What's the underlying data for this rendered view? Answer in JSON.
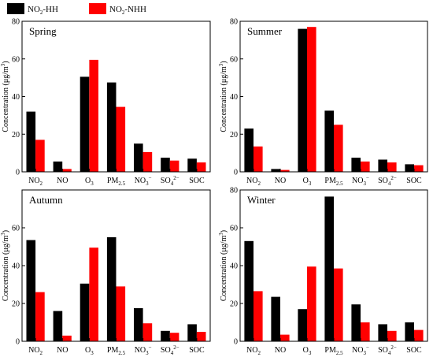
{
  "legend": {
    "items": [
      {
        "base": "NO",
        "sub": "2",
        "suffix": "-HH",
        "color": "#000000"
      },
      {
        "base": "NO",
        "sub": "2",
        "suffix": "-NHH",
        "color": "#ff0000"
      }
    ]
  },
  "categories": [
    {
      "base": "NO",
      "sub": "2",
      "sup": ""
    },
    {
      "base": "NO",
      "sub": "",
      "sup": ""
    },
    {
      "base": "O",
      "sub": "3",
      "sup": ""
    },
    {
      "base": "PM",
      "sub": "2.5",
      "sup": ""
    },
    {
      "base": "NO",
      "sub": "3",
      "sup": "−"
    },
    {
      "base": "SO",
      "sub": "4",
      "sup": "2−"
    },
    {
      "base": "SOC",
      "sub": "",
      "sup": ""
    }
  ],
  "ylabel": {
    "text": "Concentration (μg/m",
    "sup": "3",
    "close": ")"
  },
  "chart_data": [
    {
      "type": "bar",
      "title": "Spring",
      "ylim": [
        0,
        80
      ],
      "yticks": [
        0,
        20,
        40,
        60,
        80
      ],
      "series": [
        {
          "name": "NO2-HH",
          "values": [
            32,
            5.5,
            50.5,
            47.5,
            15,
            7.5,
            7
          ]
        },
        {
          "name": "NO2-NHH",
          "values": [
            17,
            1.5,
            59.5,
            34.5,
            10.5,
            6,
            5
          ]
        }
      ]
    },
    {
      "type": "bar",
      "title": "Summer",
      "ylim": [
        0,
        80
      ],
      "yticks": [
        0,
        20,
        40,
        60,
        80
      ],
      "series": [
        {
          "name": "NO2-HH",
          "values": [
            23,
            1.5,
            76,
            32.5,
            7.5,
            6.5,
            4
          ]
        },
        {
          "name": "NO2-NHH",
          "values": [
            13.5,
            1,
            77,
            25,
            5.5,
            5,
            3.5
          ]
        }
      ]
    },
    {
      "type": "bar",
      "title": "Autumn",
      "ylim": [
        0,
        80
      ],
      "yticks": [
        0,
        20,
        40,
        60
      ],
      "series": [
        {
          "name": "NO2-HH",
          "values": [
            53.5,
            16,
            30.5,
            55,
            17.5,
            5.5,
            9
          ]
        },
        {
          "name": "NO2-NHH",
          "values": [
            26,
            3,
            49.5,
            29,
            9.5,
            4.5,
            5
          ]
        }
      ]
    },
    {
      "type": "bar",
      "title": "Winter",
      "ylim": [
        0,
        80
      ],
      "yticks": [
        0,
        20,
        40,
        60,
        80
      ],
      "series": [
        {
          "name": "NO2-HH",
          "values": [
            53,
            23.5,
            17,
            76.5,
            19.5,
            9,
            10
          ]
        },
        {
          "name": "NO2-NHH",
          "values": [
            26.5,
            3.5,
            39.5,
            38.5,
            10,
            5.5,
            6
          ]
        }
      ]
    }
  ]
}
